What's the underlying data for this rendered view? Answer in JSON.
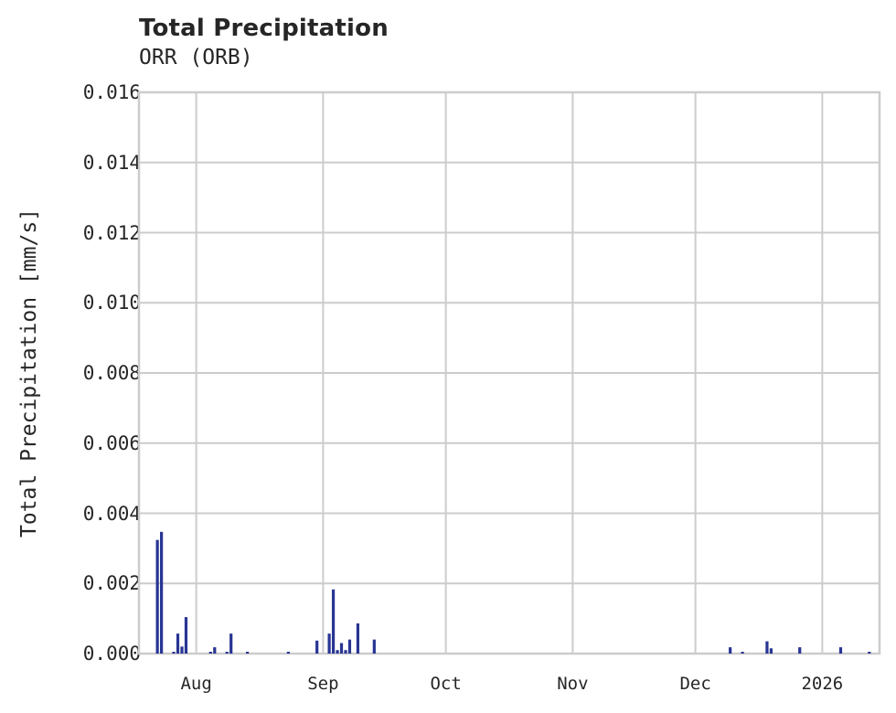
{
  "chart": {
    "title": "Total Precipitation",
    "subtitle": "ORR (ORB)",
    "ylabel": "Total Precipitation [mm/s]",
    "yticks": [
      "0.000",
      "0.002",
      "0.004",
      "0.006",
      "0.008",
      "0.010",
      "0.012",
      "0.014",
      "0.016"
    ],
    "xticks": [
      "Aug",
      "Sep",
      "Oct",
      "Nov",
      "Dec",
      "2026"
    ]
  },
  "colors": {
    "bar": "#283593",
    "grid": "#cccccc",
    "text": "#262626"
  },
  "chart_data": {
    "type": "bar",
    "title": "Total Precipitation",
    "subtitle": "ORR (ORB)",
    "xlabel": "",
    "ylabel": "Total Precipitation [mm/s]",
    "ylim": [
      0,
      0.016
    ],
    "xlim": [
      "2025-07-18",
      "2026-01-15"
    ],
    "grid": true,
    "legend": null,
    "x_tick_labels": [
      "Aug",
      "Sep",
      "Oct",
      "Nov",
      "Dec",
      "2026"
    ],
    "y_tick_labels": [
      "0.000",
      "0.002",
      "0.004",
      "0.006",
      "0.008",
      "0.010",
      "0.012",
      "0.014",
      "0.016"
    ],
    "categories": [
      "2025-07-22",
      "2025-07-23",
      "2025-07-26",
      "2025-07-27",
      "2025-07-28",
      "2025-07-29",
      "2025-08-04",
      "2025-08-05",
      "2025-08-08",
      "2025-08-09",
      "2025-08-13",
      "2025-08-23",
      "2025-08-30",
      "2025-09-02",
      "2025-09-03",
      "2025-09-04",
      "2025-09-05",
      "2025-09-06",
      "2025-09-07",
      "2025-09-09",
      "2025-09-13",
      "2025-12-09",
      "2025-12-12",
      "2025-12-18",
      "2025-12-19",
      "2025-12-26",
      "2026-01-05",
      "2026-01-12"
    ],
    "values": [
      0.00324,
      0.00347,
      5e-05,
      0.00057,
      0.0002,
      0.00104,
      5e-05,
      0.00018,
      5e-05,
      0.00057,
      5e-05,
      5e-05,
      0.00037,
      0.00057,
      0.00183,
      0.0001,
      0.0003,
      0.0001,
      0.0004,
      0.00086,
      0.0004,
      0.00018,
      5e-05,
      0.00035,
      0.00015,
      0.00018,
      0.00018,
      5e-05
    ]
  }
}
